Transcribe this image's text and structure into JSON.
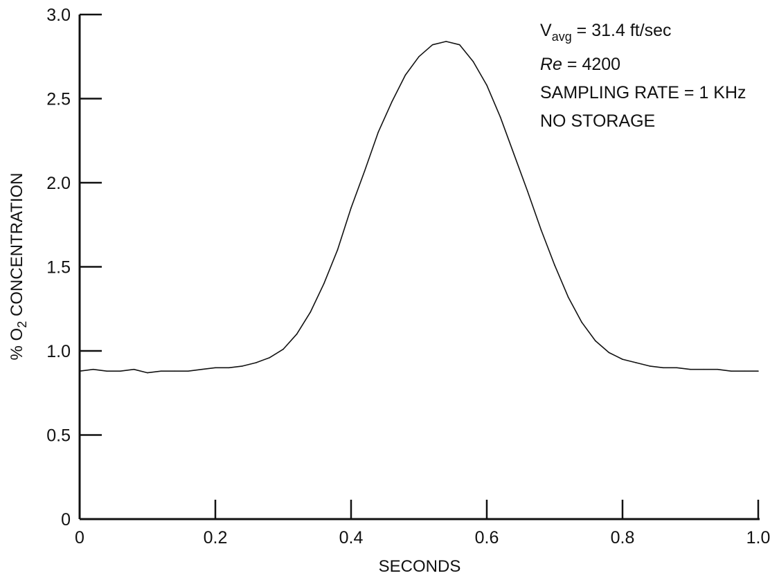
{
  "chart_data": {
    "type": "line",
    "title": "",
    "xlabel": "SECONDS",
    "ylabel": {
      "prefix": "% O",
      "subscript": "2",
      "suffix": " CONCENTRATION"
    },
    "xlim": [
      0,
      1.0
    ],
    "ylim": [
      0,
      3.0
    ],
    "x_ticks": [
      {
        "value": 0,
        "label": "0"
      },
      {
        "value": 0.2,
        "label": "0.2"
      },
      {
        "value": 0.4,
        "label": "0.4"
      },
      {
        "value": 0.6,
        "label": "0.6"
      },
      {
        "value": 0.8,
        "label": "0.8"
      },
      {
        "value": 1.0,
        "label": "1.0"
      }
    ],
    "y_ticks": [
      {
        "value": 0,
        "label": "0"
      },
      {
        "value": 0.5,
        "label": "0.5"
      },
      {
        "value": 1.0,
        "label": "1.0"
      },
      {
        "value": 1.5,
        "label": "1.5"
      },
      {
        "value": 2.0,
        "label": "2.0"
      },
      {
        "value": 2.5,
        "label": "2.5"
      },
      {
        "value": 3.0,
        "label": "3.0"
      }
    ],
    "grid": false,
    "series": [
      {
        "x": [
          0.0,
          0.02,
          0.04,
          0.06,
          0.08,
          0.1,
          0.12,
          0.14,
          0.16,
          0.18,
          0.2,
          0.22,
          0.24,
          0.26,
          0.28,
          0.3,
          0.32,
          0.34,
          0.36,
          0.38,
          0.4,
          0.42,
          0.44,
          0.46,
          0.48,
          0.5,
          0.52,
          0.54,
          0.56,
          0.58,
          0.6,
          0.62,
          0.64,
          0.66,
          0.68,
          0.7,
          0.72,
          0.74,
          0.76,
          0.78,
          0.8,
          0.82,
          0.84,
          0.86,
          0.88,
          0.9,
          0.92,
          0.94,
          0.96,
          0.98,
          1.0
        ],
        "y": [
          0.88,
          0.89,
          0.88,
          0.88,
          0.89,
          0.87,
          0.88,
          0.88,
          0.88,
          0.89,
          0.9,
          0.9,
          0.91,
          0.93,
          0.96,
          1.01,
          1.1,
          1.23,
          1.4,
          1.6,
          1.85,
          2.07,
          2.3,
          2.48,
          2.64,
          2.75,
          2.82,
          2.84,
          2.82,
          2.72,
          2.58,
          2.39,
          2.17,
          1.95,
          1.72,
          1.51,
          1.32,
          1.17,
          1.06,
          0.99,
          0.95,
          0.93,
          0.91,
          0.9,
          0.9,
          0.89,
          0.89,
          0.89,
          0.88,
          0.88,
          0.88
        ]
      }
    ],
    "annotations": [
      {
        "main": "V",
        "sub": "avg",
        "rest": " = 31.4 ft/sec"
      },
      {
        "main": "Re",
        "rest": " = 4200"
      },
      {
        "main": "SAMPLING RATE = 1 KHz"
      },
      {
        "main": "NO STORAGE"
      }
    ]
  }
}
